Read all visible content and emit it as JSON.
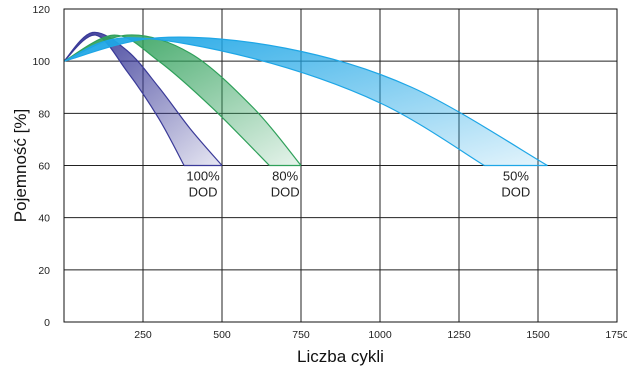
{
  "chart_data": {
    "type": "area",
    "title": "",
    "xlabel": "Liczba cykli",
    "ylabel": "Pojemność [%]",
    "xlim": [
      0,
      1750
    ],
    "ylim": [
      0,
      120
    ],
    "x_ticks": [
      "250",
      "500",
      "750",
      "1000",
      "1250",
      "1500",
      "1750"
    ],
    "y_ticks": [
      "0",
      "20",
      "40",
      "60",
      "80",
      "100",
      "120"
    ],
    "grid": true,
    "legend": "none",
    "series": [
      {
        "label_lines": [
          "100%",
          "DOD"
        ],
        "color": "#3a3a98",
        "upper": {
          "x": [
            0,
            90,
            200,
            300,
            400,
            500
          ],
          "y": [
            100,
            111,
            104,
            90,
            74,
            60
          ]
        },
        "lower": {
          "x": [
            0,
            100,
            200,
            300,
            380
          ],
          "y": [
            100,
            110,
            96,
            78,
            60
          ]
        }
      },
      {
        "label_lines": [
          "80%",
          "DOD"
        ],
        "color": "#2fa05a",
        "upper": {
          "x": [
            0,
            200,
            400,
            600,
            750
          ],
          "y": [
            100,
            110,
            103,
            82,
            60
          ]
        },
        "lower": {
          "x": [
            0,
            160,
            300,
            470,
            650
          ],
          "y": [
            100,
            110,
            100,
            82,
            60
          ]
        }
      },
      {
        "label_lines": [
          "50%",
          "DOD"
        ],
        "color": "#1ea6e6",
        "upper": {
          "x": [
            0,
            300,
            700,
            1100,
            1530
          ],
          "y": [
            100,
            109,
            105,
            90,
            60
          ]
        },
        "lower": {
          "x": [
            0,
            200,
            600,
            1000,
            1330
          ],
          "y": [
            100,
            109,
            101,
            84,
            60
          ]
        }
      }
    ]
  }
}
